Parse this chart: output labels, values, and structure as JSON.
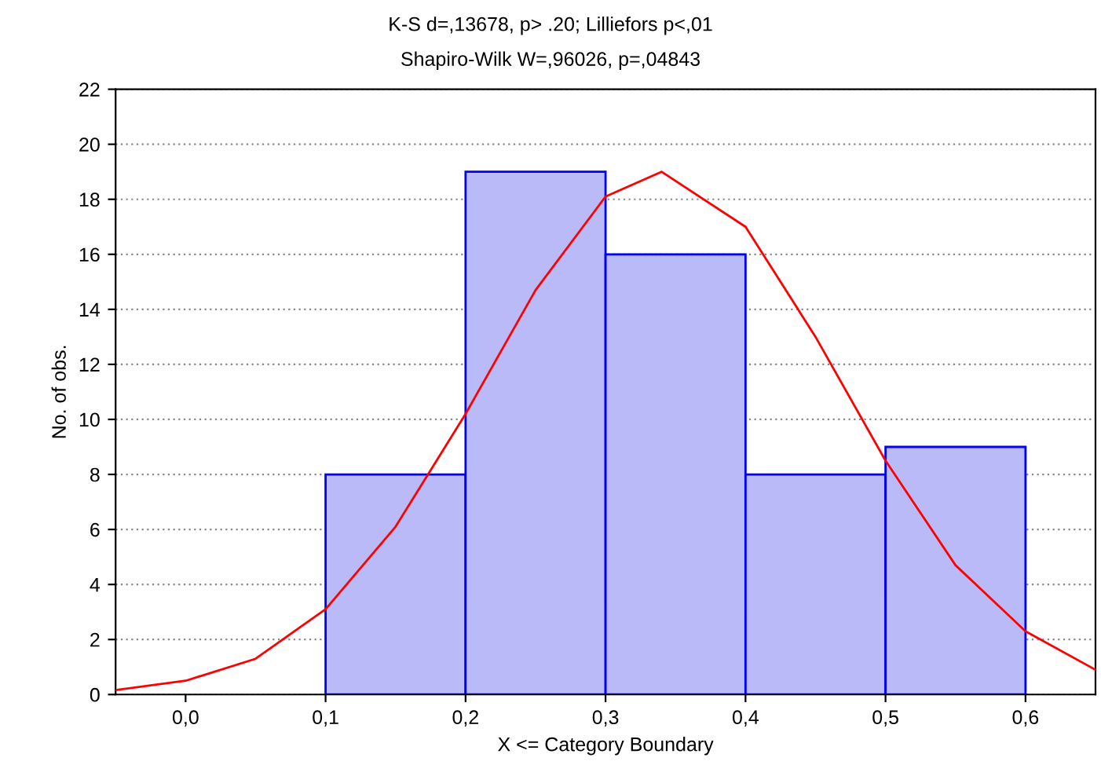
{
  "chart_data": {
    "type": "histogram",
    "title": "K-S d=,13678, p> .20; Lilliefors p<,01",
    "subtitle": "Shapiro-Wilk W=,96026, p=,04843",
    "xlabel": "X <= Category Boundary",
    "ylabel": "No. of obs.",
    "bins": [
      0.1,
      0.2,
      0.3,
      0.4,
      0.5,
      0.6
    ],
    "values": [
      8,
      19,
      16,
      8,
      9
    ],
    "color": "#babaf8",
    "series": [
      {
        "type": "line",
        "color": "#ff0000",
        "x": [
          -0.05,
          0.0,
          0.05,
          0.1,
          0.15,
          0.2,
          0.25,
          0.3,
          0.34,
          0.4,
          0.45,
          0.5,
          0.55,
          0.6,
          0.65
        ],
        "values": [
          0.16,
          0.5,
          1.3,
          3.1,
          6.1,
          10.2,
          14.7,
          18.1,
          19,
          17.0,
          13.0,
          8.5,
          4.7,
          2.3,
          0.9
        ]
      }
    ],
    "xlim": [
      -0.05,
      0.65
    ],
    "ylim": [
      0,
      22
    ],
    "xticks": [
      {
        "value": 0.0,
        "label": "0,0"
      },
      {
        "value": 0.1,
        "label": "0,1"
      },
      {
        "value": 0.2,
        "label": "0,2"
      },
      {
        "value": 0.3,
        "label": "0,3"
      },
      {
        "value": 0.4,
        "label": "0,4"
      },
      {
        "value": 0.5,
        "label": "0,5"
      },
      {
        "value": 0.6,
        "label": "0,6"
      }
    ],
    "yticks": [
      0,
      2,
      4,
      6,
      8,
      10,
      12,
      14,
      16,
      18,
      20,
      22
    ],
    "grid": "y",
    "legend": false,
    "line_style": "solid",
    "marker": "none"
  }
}
